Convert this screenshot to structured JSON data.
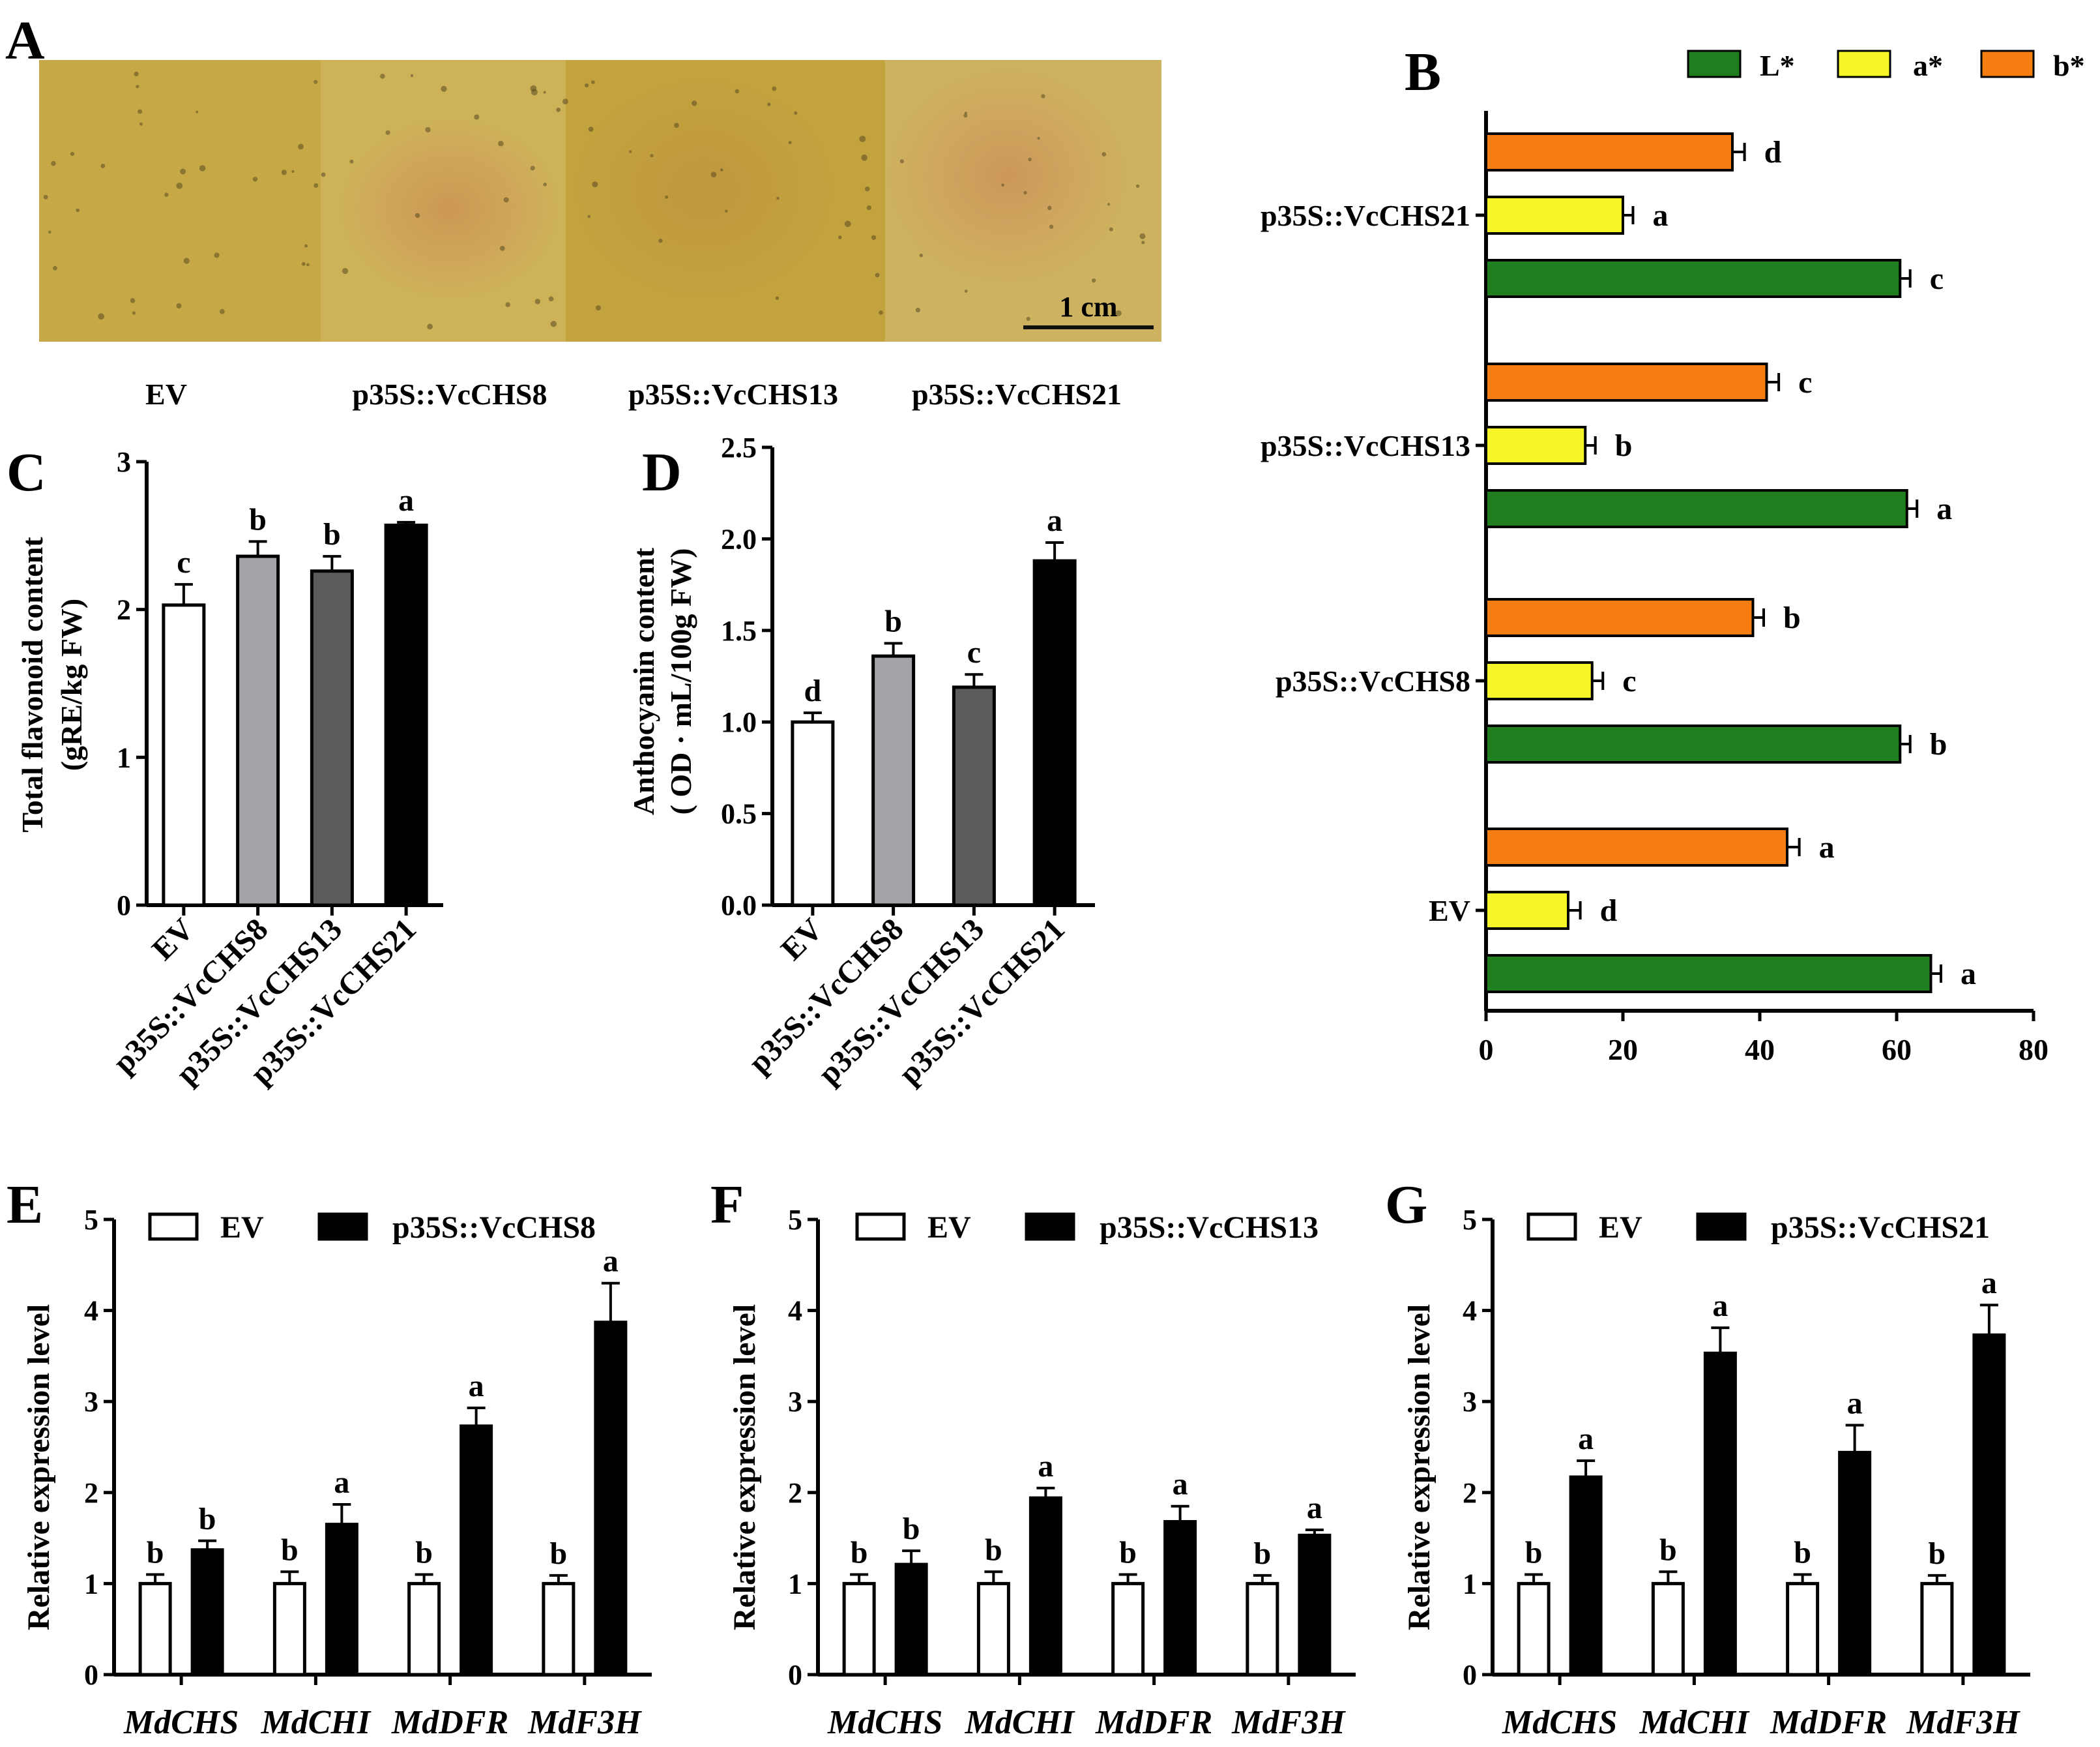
{
  "colors": {
    "L": "#1f7f1f",
    "a": "#f5f528",
    "b": "#f57d12",
    "ev": "#ffffff",
    "vc8": "#a3a3aa",
    "vc13": "#5c5c5c",
    "vc21": "#000000",
    "photo_base": "#c7a744"
  },
  "panelA": {
    "letter": "A",
    "scale_label": "1 cm",
    "labels": [
      "EV",
      "p35S::VcCHS8",
      "p35S::VcCHS13",
      "p35S::VcCHS21"
    ]
  },
  "chart_data": [
    {
      "panel": "B",
      "letter": "B",
      "type": "bar",
      "orientation": "horizontal",
      "groups": [
        "p35S::VcCHS21",
        "p35S::VcCHS13",
        "p35S::VcCHS8",
        "EV"
      ],
      "legend": [
        "L*",
        "a*",
        "b*"
      ],
      "series": [
        {
          "name": "b*",
          "values": [
            36,
            41,
            39,
            44
          ],
          "errors": [
            1.2,
            1.2,
            1.0,
            1.2
          ],
          "letters": [
            "d",
            "c",
            "b",
            "a"
          ]
        },
        {
          "name": "a*",
          "values": [
            20,
            14.5,
            15.5,
            12
          ],
          "errors": [
            0.9,
            0.9,
            1.0,
            1.2
          ],
          "letters": [
            "a",
            "b",
            "c",
            "d"
          ]
        },
        {
          "name": "L*",
          "values": [
            60.5,
            61.5,
            60.5,
            65
          ],
          "errors": [
            0.9,
            0.9,
            0.9,
            0.9
          ],
          "letters": [
            "c",
            "a",
            "b",
            "a"
          ]
        }
      ],
      "xlim": [
        0,
        80
      ],
      "xticks": [
        "0",
        "20",
        "40",
        "60",
        "80"
      ]
    },
    {
      "panel": "C",
      "letter": "C",
      "type": "bar",
      "categories": [
        "EV",
        "p35S::VcCHS8",
        "p35S::VcCHS13",
        "p35S::VcCHS21"
      ],
      "values": [
        2.03,
        2.36,
        2.26,
        2.57
      ],
      "errors": [
        0.14,
        0.1,
        0.1,
        0.02
      ],
      "letters": [
        "c",
        "b",
        "b",
        "a"
      ],
      "ylabel": "Total flavonoid content",
      "ylabel2": "(gRE/kg FW)",
      "ylim": [
        0,
        3
      ],
      "yticks": [
        "0",
        "1",
        "2",
        "3"
      ]
    },
    {
      "panel": "D",
      "letter": "D",
      "type": "bar",
      "categories": [
        "EV",
        "p35S::VcCHS8",
        "p35S::VcCHS13",
        "p35S::VcCHS21"
      ],
      "values": [
        1.0,
        1.36,
        1.19,
        1.88
      ],
      "errors": [
        0.05,
        0.07,
        0.07,
        0.1
      ],
      "letters": [
        "d",
        "b",
        "c",
        "a"
      ],
      "ylabel": "Anthocyanin content",
      "ylabel2": "( OD · mL/100g FW)",
      "ylim": [
        0,
        2.5
      ],
      "yticks": [
        "0.0",
        "0.5",
        "1.0",
        "1.5",
        "2.0",
        "2.5"
      ]
    },
    {
      "panel": "E",
      "letter": "E",
      "type": "bar",
      "categories": [
        "MdCHS",
        "MdCHI",
        "MdDFR",
        "MdF3H"
      ],
      "series": [
        {
          "name": "EV",
          "values": [
            1,
            1,
            1,
            1
          ],
          "errors": [
            0.1,
            0.13,
            0.1,
            0.09
          ],
          "letters": [
            "b",
            "b",
            "b",
            "b"
          ]
        },
        {
          "name": "p35S::VcCHS8",
          "values": [
            1.37,
            1.65,
            2.73,
            3.87
          ],
          "errors": [
            0.1,
            0.22,
            0.2,
            0.43
          ],
          "letters": [
            "b",
            "a",
            "a",
            "a"
          ]
        }
      ],
      "ylabel": "Relative  expression level",
      "ylim": [
        0,
        5
      ],
      "yticks": [
        "0",
        "1",
        "2",
        "3",
        "4",
        "5"
      ]
    },
    {
      "panel": "F",
      "letter": "F",
      "type": "bar",
      "categories": [
        "MdCHS",
        "MdCHI",
        "MdDFR",
        "MdF3H"
      ],
      "series": [
        {
          "name": "EV",
          "values": [
            1,
            1,
            1,
            1
          ],
          "errors": [
            0.1,
            0.13,
            0.1,
            0.09
          ],
          "letters": [
            "b",
            "b",
            "b",
            "b"
          ]
        },
        {
          "name": "p35S::VcCHS13",
          "values": [
            1.21,
            1.94,
            1.68,
            1.53
          ],
          "errors": [
            0.15,
            0.11,
            0.17,
            0.06
          ],
          "letters": [
            "b",
            "a",
            "a",
            "a"
          ]
        }
      ],
      "ylabel": "Relative  expression level",
      "ylim": [
        0,
        5
      ],
      "yticks": [
        "0",
        "1",
        "2",
        "3",
        "4",
        "5"
      ]
    },
    {
      "panel": "G",
      "letter": "G",
      "type": "bar",
      "categories": [
        "MdCHS",
        "MdCHI",
        "MdDFR",
        "MdF3H"
      ],
      "series": [
        {
          "name": "EV",
          "values": [
            1,
            1,
            1,
            1
          ],
          "errors": [
            0.1,
            0.13,
            0.1,
            0.09
          ],
          "letters": [
            "b",
            "b",
            "b",
            "b"
          ]
        },
        {
          "name": "p35S::VcCHS21",
          "values": [
            2.17,
            3.53,
            2.44,
            3.73
          ],
          "errors": [
            0.18,
            0.28,
            0.3,
            0.33
          ],
          "letters": [
            "a",
            "a",
            "a",
            "a"
          ]
        }
      ],
      "ylabel": "Relative  expression level",
      "ylim": [
        0,
        5
      ],
      "yticks": [
        "0",
        "1",
        "2",
        "3",
        "4",
        "5"
      ]
    }
  ]
}
